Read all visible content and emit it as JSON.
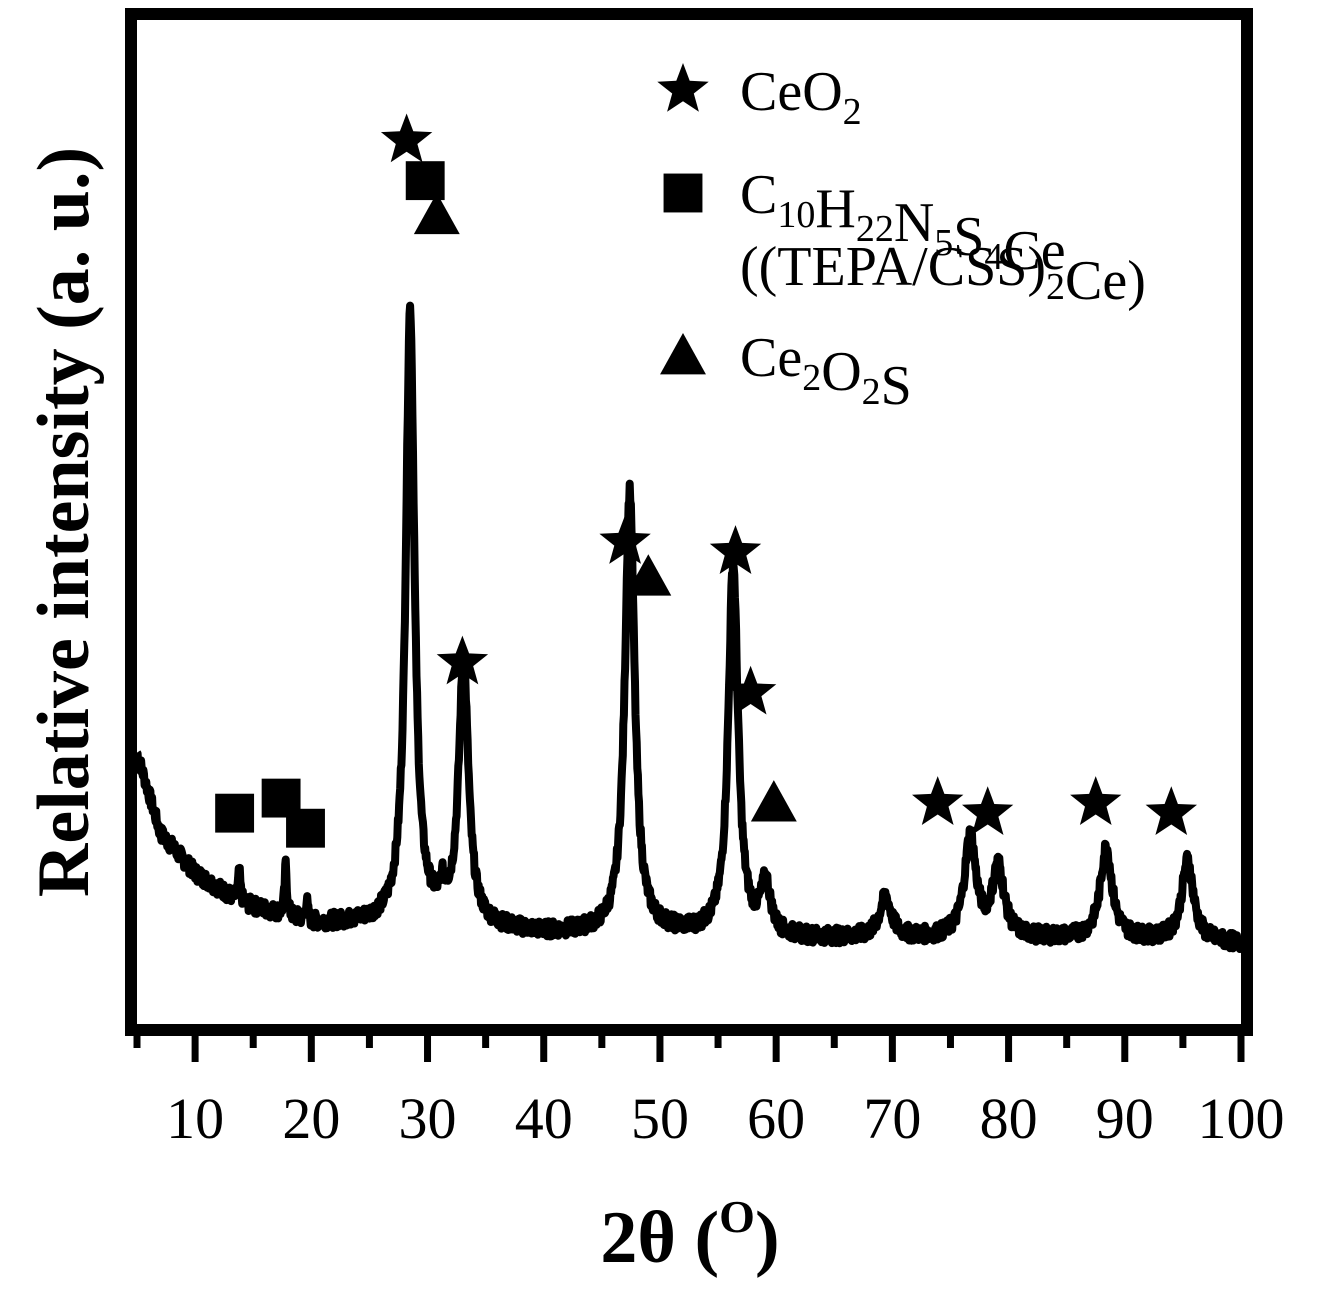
{
  "chart_data": {
    "type": "line",
    "xlabel_main": "2θ (",
    "xlabel_sup": "O",
    "xlabel_close": ")",
    "ylabel": "Relative intensity (a. u.)",
    "xlim": [
      5,
      100
    ],
    "ylim": [
      0,
      100
    ],
    "x_ticks": [
      10,
      20,
      30,
      40,
      50,
      60,
      70,
      80,
      90,
      100
    ],
    "y_ticks_shown": false,
    "grid": false,
    "legend_position": "top-right",
    "legend": [
      {
        "marker": "star",
        "parts": [
          [
            "CeO",
            ""
          ],
          [
            "2",
            "sub"
          ]
        ]
      },
      {
        "marker": "square",
        "parts": [
          [
            "C",
            ""
          ],
          [
            "10",
            "sub"
          ],
          [
            "H",
            ""
          ],
          [
            "22",
            "sub"
          ],
          [
            "N",
            ""
          ],
          [
            "5",
            "sub"
          ],
          [
            "S",
            ""
          ],
          [
            "4",
            "sub"
          ],
          [
            "Ce",
            ""
          ]
        ]
      },
      {
        "marker": "none",
        "parts": [
          [
            "((TEPA/CSS)",
            ""
          ],
          [
            "2",
            "sub"
          ],
          [
            "Ce)",
            ""
          ]
        ]
      },
      {
        "marker": "triangle",
        "parts": [
          [
            "Ce",
            ""
          ],
          [
            "2",
            "sub"
          ],
          [
            "O",
            ""
          ],
          [
            "2",
            "sub"
          ],
          [
            "S",
            ""
          ]
        ]
      }
    ],
    "series": [
      {
        "baseline": [
          [
            5,
            27
          ],
          [
            7,
            19
          ],
          [
            10,
            15
          ],
          [
            14,
            12
          ],
          [
            20,
            10
          ],
          [
            25,
            10
          ],
          [
            30,
            10
          ],
          [
            40,
            9
          ],
          [
            50,
            9
          ],
          [
            60,
            8.5
          ],
          [
            70,
            8.5
          ],
          [
            80,
            8.5
          ],
          [
            90,
            8.5
          ],
          [
            100,
            8
          ]
        ],
        "peaks": [
          {
            "center": 13.8,
            "height": 3,
            "width": 0.12
          },
          {
            "center": 17.8,
            "height": 5,
            "width": 0.12
          },
          {
            "center": 19.6,
            "height": 2,
            "width": 0.12
          },
          {
            "center": 28.5,
            "height": 61,
            "width": 0.45
          },
          {
            "center": 31.3,
            "height": 2,
            "width": 0.3
          },
          {
            "center": 33.1,
            "height": 26,
            "width": 0.5
          },
          {
            "center": 47.4,
            "height": 44,
            "width": 0.5
          },
          {
            "center": 56.3,
            "height": 37,
            "width": 0.5
          },
          {
            "center": 59.1,
            "height": 5,
            "width": 0.5
          },
          {
            "center": 69.4,
            "height": 4,
            "width": 0.6
          },
          {
            "center": 76.7,
            "height": 10,
            "width": 0.6
          },
          {
            "center": 79.1,
            "height": 7,
            "width": 0.6
          },
          {
            "center": 88.4,
            "height": 9,
            "width": 0.6
          },
          {
            "center": 95.4,
            "height": 8,
            "width": 0.6
          }
        ]
      }
    ],
    "markers": [
      {
        "shape": "star",
        "x": 28.2,
        "y": 88
      },
      {
        "shape": "square",
        "x": 29.8,
        "y": 84
      },
      {
        "shape": "triangle",
        "x": 30.8,
        "y": 80.5
      },
      {
        "shape": "star",
        "x": 33.0,
        "y": 36
      },
      {
        "shape": "star",
        "x": 47.0,
        "y": 48
      },
      {
        "shape": "triangle",
        "x": 49.0,
        "y": 44.5
      },
      {
        "shape": "star",
        "x": 56.5,
        "y": 47
      },
      {
        "shape": "star",
        "x": 57.8,
        "y": 33
      },
      {
        "shape": "triangle",
        "x": 59.8,
        "y": 22
      },
      {
        "shape": "square",
        "x": 13.4,
        "y": 21
      },
      {
        "shape": "square",
        "x": 17.4,
        "y": 22.5
      },
      {
        "shape": "square",
        "x": 19.5,
        "y": 19.5
      },
      {
        "shape": "star",
        "x": 73.9,
        "y": 22
      },
      {
        "shape": "star",
        "x": 78.2,
        "y": 21
      },
      {
        "shape": "star",
        "x": 87.5,
        "y": 22
      },
      {
        "shape": "star",
        "x": 94.0,
        "y": 21
      }
    ]
  }
}
